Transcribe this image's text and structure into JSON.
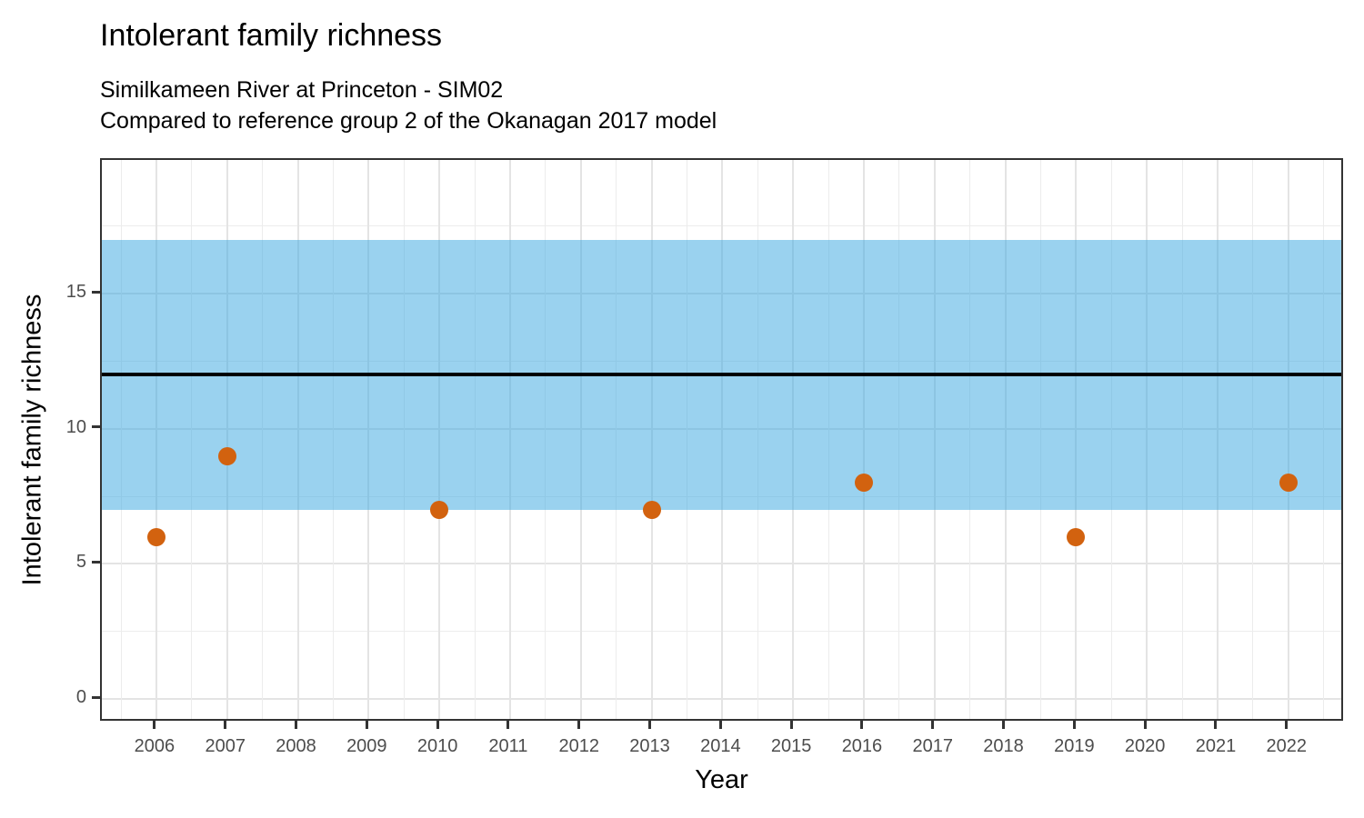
{
  "chart_data": {
    "type": "scatter",
    "title": "Intolerant family richness",
    "subtitle1": "Similkameen River at Princeton - SIM02",
    "subtitle2": "Compared to reference group 2 of the Okanagan 2017 model",
    "xlabel": "Year",
    "ylabel": "Intolerant family richness",
    "points": {
      "x": [
        2006,
        2007,
        2010,
        2013,
        2016,
        2019,
        2022
      ],
      "y": [
        6,
        9,
        7,
        7,
        8,
        6,
        8
      ]
    },
    "reference_band": {
      "low": 7,
      "high": 17
    },
    "reference_line": {
      "value": 12
    },
    "x_ticks": [
      2006,
      2007,
      2008,
      2009,
      2010,
      2011,
      2012,
      2013,
      2014,
      2015,
      2016,
      2017,
      2018,
      2019,
      2020,
      2021,
      2022
    ],
    "y_ticks": [
      0,
      5,
      10,
      15
    ],
    "y_minor_ticks": [
      2.5,
      7.5,
      12.5,
      17.5
    ],
    "xlim": [
      2005.23,
      2022.8
    ],
    "ylim": [
      -0.87,
      19.95
    ],
    "grid": true,
    "legend_position": "none",
    "colors": {
      "point": "#D2620F",
      "band_hex": "#9AD2EF",
      "band_fill": "rgba(53,165,223,0.5)",
      "reference_line": "#000000",
      "grid_major": "#E4E4E4",
      "grid_minor": "#ECECEC",
      "axis": "#333333",
      "tick_label": "#4D4D4D"
    }
  }
}
